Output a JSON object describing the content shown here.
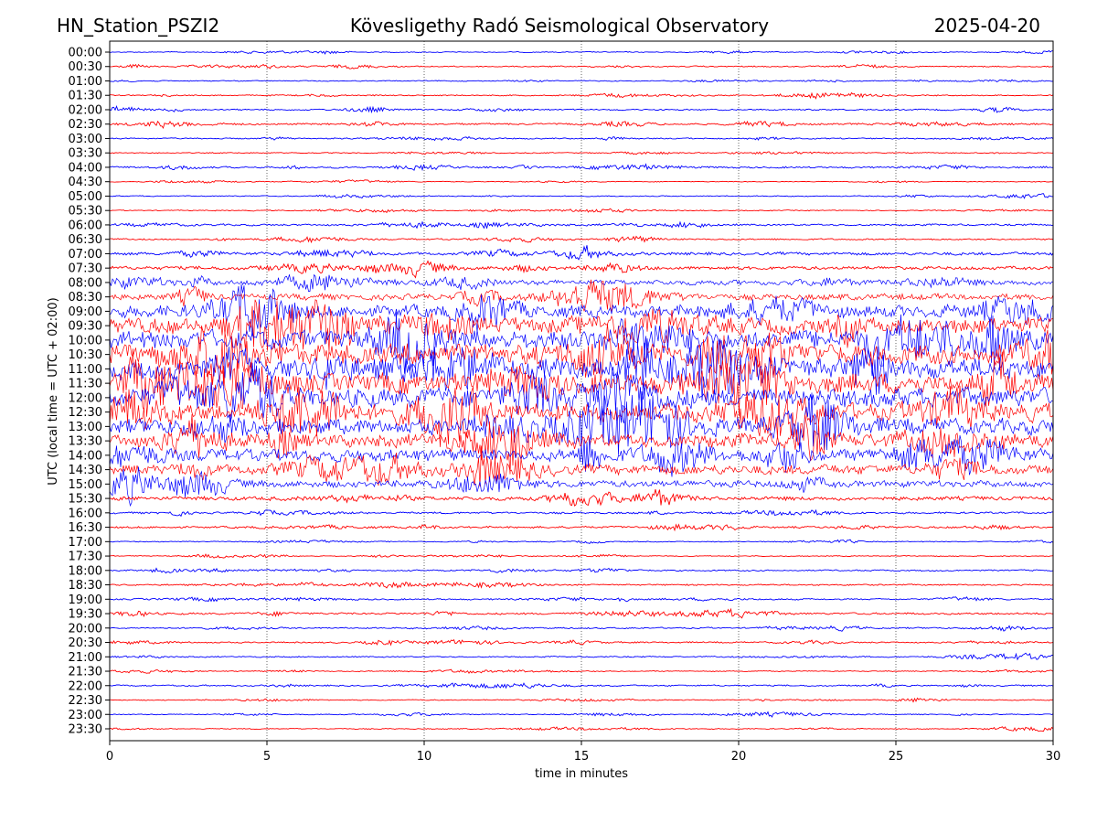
{
  "chart_data": {
    "type": "line",
    "title_left": "HN_Station_PSZI2",
    "title": "Kövesligethy Radó Seismological Observatory",
    "title_right": "2025-04-20",
    "xlabel": "time in minutes",
    "ylabel": "UTC (local time = UTC + 02:00)",
    "xlim": [
      0,
      30
    ],
    "xticks": [
      "0",
      "5",
      "10",
      "15",
      "20",
      "25",
      "30"
    ],
    "grid": "vertical dotted at 5-minute intervals",
    "row_labels": [
      "00:00",
      "00:30",
      "01:00",
      "01:30",
      "02:00",
      "02:30",
      "03:00",
      "03:30",
      "04:00",
      "04:30",
      "05:00",
      "05:30",
      "06:00",
      "06:30",
      "07:00",
      "07:30",
      "08:00",
      "08:30",
      "09:00",
      "09:30",
      "10:00",
      "10:30",
      "11:00",
      "11:30",
      "12:00",
      "12:30",
      "13:00",
      "13:30",
      "14:00",
      "14:30",
      "15:00",
      "15:30",
      "16:00",
      "16:30",
      "17:00",
      "17:30",
      "18:00",
      "18:30",
      "19:00",
      "19:30",
      "20:00",
      "20:30",
      "21:00",
      "21:30",
      "22:00",
      "22:30",
      "23:00",
      "23:30"
    ],
    "row_relative_amplitude": [
      1,
      1.3,
      1,
      1.2,
      1.5,
      1.8,
      1.3,
      1,
      1.8,
      0.8,
      1,
      1,
      2,
      1.5,
      3,
      3.5,
      6,
      7,
      14,
      18,
      22,
      24,
      24,
      22,
      22,
      20,
      18,
      16,
      14,
      11,
      8,
      4,
      2,
      2,
      1,
      1,
      1.5,
      1.5,
      1.5,
      2,
      1.5,
      1.5,
      1.3,
      1,
      1.5,
      1,
      1,
      1
    ],
    "series_colors": [
      "#0000ff",
      "#ff0000"
    ]
  }
}
